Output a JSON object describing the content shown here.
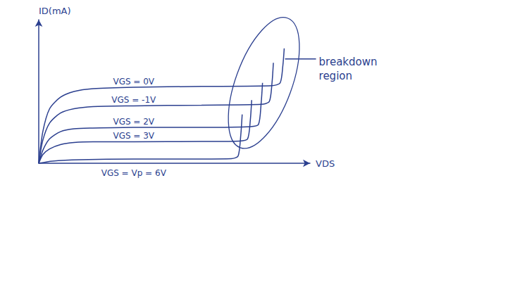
{
  "chart_data": {
    "type": "line",
    "x_label": "VDS",
    "y_label": "ID(mA)",
    "xlim": [
      0,
      10
    ],
    "ylim": [
      0,
      10
    ],
    "tick_labels": false,
    "grid": false,
    "color": "#2b3f8f",
    "annotations": [
      "breakdown region"
    ],
    "series": [
      {
        "name": "VGS = 0V",
        "x": [
          0,
          0.15,
          0.4,
          0.8,
          1.3,
          2,
          3.5,
          6,
          8.6,
          8.9,
          9.0,
          9.05
        ],
        "values": [
          0,
          2.2,
          3.8,
          4.6,
          5.0,
          5.2,
          5.3,
          5.35,
          5.4,
          5.6,
          6.8,
          8.0
        ]
      },
      {
        "name": "VGS = -1V",
        "x": [
          0,
          0.15,
          0.4,
          0.8,
          1.3,
          2,
          3.5,
          6,
          8.2,
          8.5,
          8.6,
          8.65
        ],
        "values": [
          0,
          1.6,
          2.8,
          3.5,
          3.8,
          3.95,
          4.0,
          4.05,
          4.1,
          4.3,
          5.6,
          7.0
        ]
      },
      {
        "name": "VGS = 2V",
        "x": [
          0,
          0.15,
          0.4,
          0.8,
          1.3,
          2,
          3.5,
          6,
          7.8,
          8.1,
          8.2,
          8.25
        ],
        "values": [
          0,
          0.9,
          1.7,
          2.2,
          2.4,
          2.45,
          2.5,
          2.5,
          2.55,
          2.7,
          4.2,
          5.6
        ]
      },
      {
        "name": "VGS = 3V",
        "x": [
          0,
          0.15,
          0.4,
          0.8,
          1.3,
          2,
          3.5,
          6,
          7.4,
          7.7,
          7.8,
          7.85
        ],
        "values": [
          0,
          0.6,
          1.0,
          1.3,
          1.45,
          1.5,
          1.5,
          1.52,
          1.55,
          1.7,
          3.0,
          4.4
        ]
      },
      {
        "name": "VGS = Vp = 6V",
        "x": [
          0,
          0.5,
          1.5,
          3.5,
          6,
          7.1,
          7.35,
          7.45,
          7.5
        ],
        "values": [
          0,
          0.15,
          0.25,
          0.3,
          0.3,
          0.32,
          0.5,
          2.0,
          3.4
        ]
      }
    ]
  }
}
